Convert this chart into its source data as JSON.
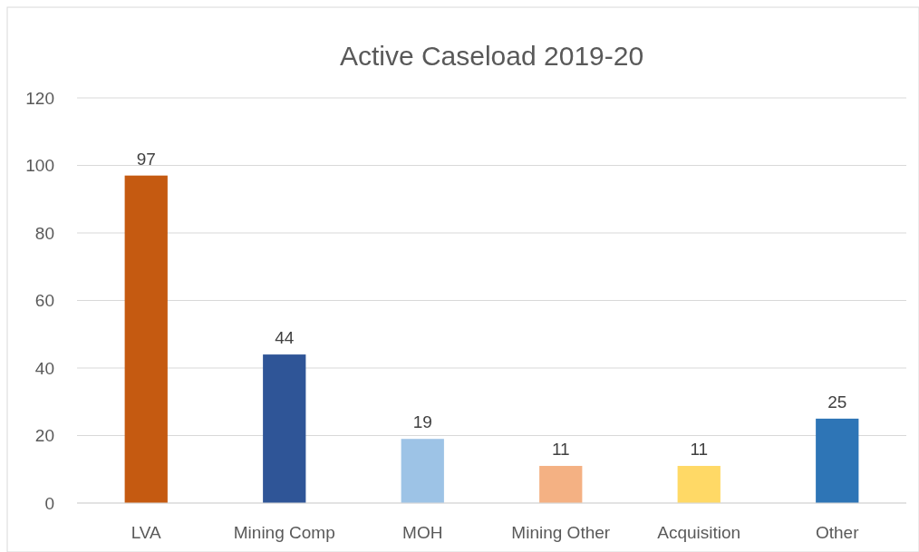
{
  "chart_data": {
    "type": "bar",
    "title": "Active Caseload 2019-20",
    "categories": [
      "LVA",
      "Mining Comp",
      "MOH",
      "Mining Other",
      "Acquisition",
      "Other"
    ],
    "values": [
      97,
      44,
      19,
      11,
      11,
      25
    ],
    "colors": [
      "#c55a11",
      "#2f5597",
      "#9dc3e6",
      "#f4b183",
      "#ffd966",
      "#2e75b6"
    ],
    "ylim": [
      0,
      120
    ],
    "yticks": [
      0,
      20,
      40,
      60,
      80,
      100,
      120
    ],
    "grid": "y",
    "data_labels": true
  }
}
